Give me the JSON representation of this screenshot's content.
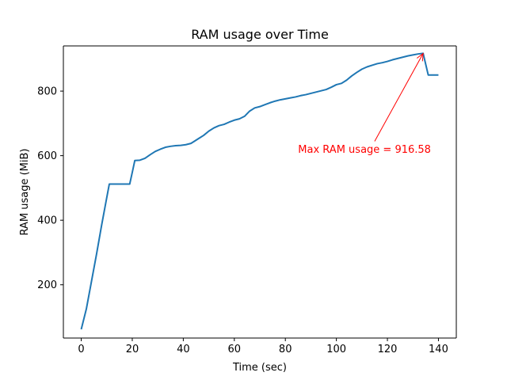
{
  "chart_data": {
    "type": "line",
    "title": "RAM usage over Time",
    "xlabel": "Time (sec)",
    "ylabel": "RAM usage (MiB)",
    "xlim": [
      -7,
      147
    ],
    "ylim": [
      35,
      940
    ],
    "xticks": [
      0,
      20,
      40,
      60,
      80,
      100,
      120,
      140
    ],
    "yticks": [
      200,
      400,
      600,
      800
    ],
    "grid": false,
    "line_color": "#1f77b4",
    "annotation_color": "#ff0000",
    "series": [
      {
        "x": [
          0,
          2,
          4,
          6,
          8,
          10,
          11,
          14,
          18,
          19,
          20,
          21,
          23,
          25,
          27,
          29,
          31,
          33,
          35,
          37,
          39,
          41,
          43,
          44,
          46,
          48,
          50,
          52,
          54,
          56,
          58,
          60,
          62,
          64,
          66,
          68,
          70,
          72,
          74,
          76,
          78,
          80,
          82,
          84,
          86,
          88,
          90,
          92,
          94,
          96,
          98,
          100,
          102,
          104,
          106,
          108,
          110,
          112,
          114,
          116,
          118,
          120,
          122,
          124,
          126,
          128,
          130,
          132,
          134,
          136,
          138,
          140
        ],
        "y": [
          62,
          125,
          210,
          295,
          385,
          470,
          512,
          512,
          512,
          512,
          548,
          585,
          586,
          592,
          603,
          613,
          620,
          626,
          629,
          631,
          632,
          634,
          638,
          643,
          653,
          663,
          676,
          686,
          693,
          697,
          704,
          710,
          714,
          722,
          738,
          748,
          752,
          758,
          764,
          769,
          773,
          776,
          779,
          782,
          786,
          789,
          793,
          797,
          801,
          805,
          812,
          820,
          824,
          834,
          847,
          858,
          868,
          875,
          880,
          885,
          888,
          892,
          897,
          901,
          905,
          909,
          912,
          915,
          917,
          850,
          850,
          850
        ]
      }
    ],
    "annotations": [
      {
        "text": "Max RAM usage = 916.58",
        "point": [
          134,
          916.58
        ],
        "text_pos": [
          85,
          620
        ]
      }
    ]
  }
}
